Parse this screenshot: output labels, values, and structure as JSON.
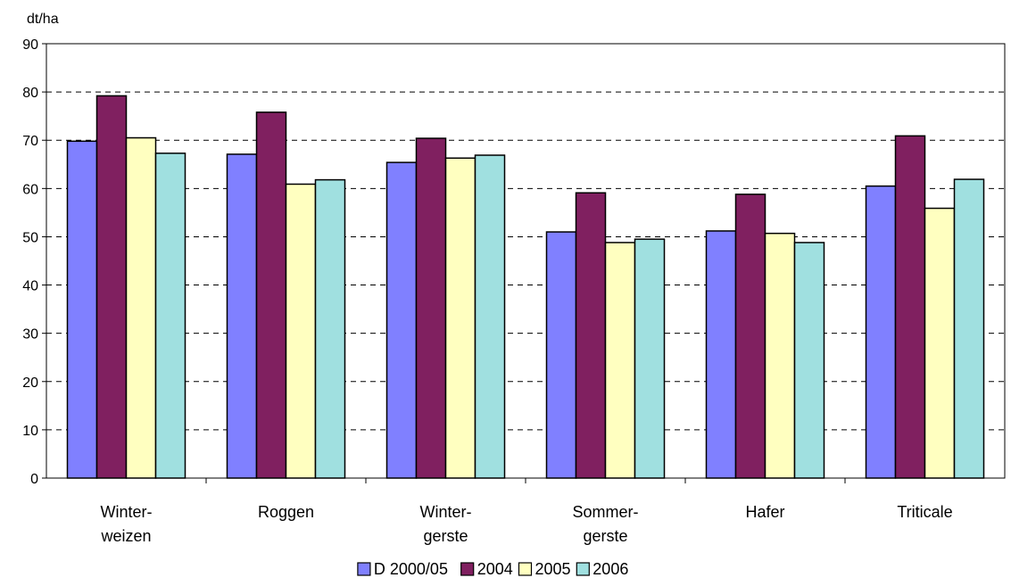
{
  "chart_data": {
    "type": "bar",
    "unit_label": "dt/ha",
    "categories": [
      [
        "Winter-",
        "weizen"
      ],
      [
        "Roggen"
      ],
      [
        "Winter-",
        "gerste"
      ],
      [
        "Sommer-",
        "gerste"
      ],
      [
        "Hafer"
      ],
      [
        "Triticale"
      ]
    ],
    "series": [
      {
        "name": "D 2000/05",
        "color": "#8080FF",
        "values": [
          69.8,
          67.1,
          65.4,
          51.0,
          51.2,
          60.5
        ]
      },
      {
        "name": "2004",
        "color": "#802060",
        "values": [
          79.2,
          75.8,
          70.4,
          59.1,
          58.8,
          70.9
        ]
      },
      {
        "name": "2005",
        "color": "#FFFFC0",
        "values": [
          70.5,
          60.9,
          66.3,
          48.8,
          50.7,
          55.9
        ]
      },
      {
        "name": "2006",
        "color": "#A0E0E0",
        "values": [
          67.3,
          61.8,
          66.9,
          49.5,
          48.8,
          61.9
        ]
      }
    ],
    "ylim": [
      0,
      90
    ],
    "ytick_step": 10,
    "grid": "horizontal dashed",
    "legend_position": "bottom-center"
  }
}
